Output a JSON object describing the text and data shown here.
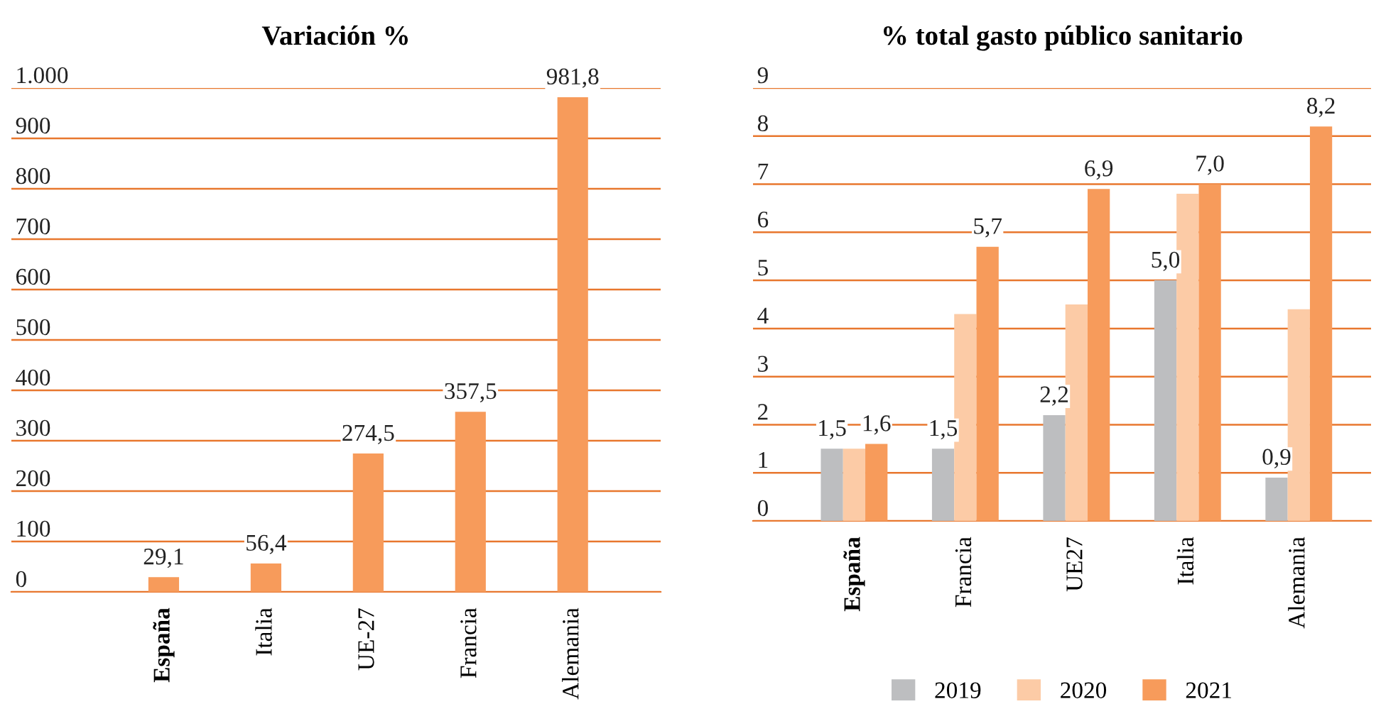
{
  "chart_data": [
    {
      "type": "bar",
      "title": "Variación %",
      "categories": [
        "España",
        "Italia",
        "UE-27",
        "Francia",
        "Alemania"
      ],
      "values": [
        29.1,
        56.4,
        274.5,
        357.5,
        981.8
      ],
      "color": "#f79b5b",
      "value_labels": [
        "29,1",
        "56,4",
        "274,5",
        "357,5",
        "981,8"
      ],
      "ylim": [
        0,
        1000
      ],
      "yticks": [
        0,
        100,
        200,
        300,
        400,
        500,
        600,
        700,
        800,
        900,
        {
          "value": 1000,
          "label": "1.000"
        }
      ],
      "grid": "y"
    },
    {
      "type": "bar",
      "title": "% total gasto público sanitario",
      "categories": [
        "España",
        "Francia",
        "UE27",
        "Italia",
        "Alemania"
      ],
      "series": [
        {
          "name": "2019",
          "color": "#bdbec0",
          "values": [
            1.5,
            1.5,
            2.2,
            5.0,
            0.9
          ],
          "value_labels": [
            "1,5",
            "1,5",
            "2,2",
            "5,0",
            "0,9"
          ]
        },
        {
          "name": "2020",
          "color": "#fccba6",
          "values": [
            1.5,
            4.3,
            4.5,
            6.8,
            4.4
          ]
        },
        {
          "name": "2021",
          "color": "#f79b5b",
          "values": [
            1.6,
            5.7,
            6.9,
            7.0,
            8.2
          ],
          "value_labels": [
            "1,6",
            "5,7",
            "6,9",
            "7,0",
            "8,2"
          ]
        }
      ],
      "ylim": [
        0,
        9
      ],
      "yticks": [
        0,
        1,
        2,
        3,
        4,
        5,
        6,
        7,
        8,
        9
      ],
      "grid": "y",
      "legend": "bottom"
    }
  ]
}
